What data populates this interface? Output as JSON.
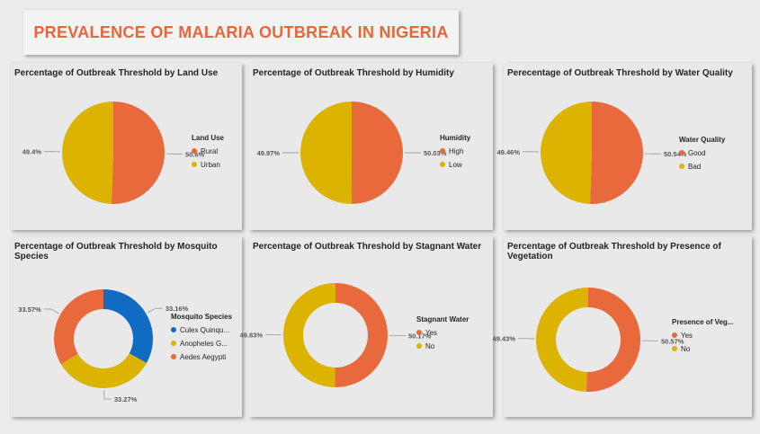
{
  "page": {
    "title": "PREVALENCE OF MALARIA OUTBREAK IN NIGERIA"
  },
  "colors": {
    "orange": "#e8693b",
    "yellow": "#dbb300",
    "blue": "#126bc2",
    "title": "#e8663a"
  },
  "chart_data": [
    {
      "id": "land-use",
      "type": "pie",
      "title": "Percentage of Outbreak Threshold by Land Use",
      "legend_title": "Land Use",
      "categories": [
        "Rural",
        "Urban"
      ],
      "values": [
        50.6,
        49.4
      ],
      "value_labels": [
        "50.6%",
        "49.4%"
      ],
      "colors": [
        "#e8693b",
        "#dbb300"
      ]
    },
    {
      "id": "humidity",
      "type": "pie",
      "title": "Percentage of Outbreak Threshold by Humidity",
      "legend_title": "Humidity",
      "categories": [
        "High",
        "Low"
      ],
      "values": [
        50.03,
        49.97
      ],
      "value_labels": [
        "50.03%",
        "49.97%"
      ],
      "colors": [
        "#e8693b",
        "#dbb300"
      ]
    },
    {
      "id": "water-quality",
      "type": "pie",
      "title": "Perecentage of Outbreak Threshold by Water Quality",
      "legend_title": "Water Quality",
      "categories": [
        "Good",
        "Bad"
      ],
      "values": [
        50.54,
        49.46
      ],
      "value_labels": [
        "50.54%",
        "49.46%"
      ],
      "colors": [
        "#e8693b",
        "#dbb300"
      ]
    },
    {
      "id": "mosquito-species",
      "type": "pie",
      "donut": true,
      "title": "Percentage of Outbreak Threshold by Mosquito Species",
      "legend_title": "Mosquito Species",
      "categories": [
        "Culex Quinqu...",
        "Anopheles G...",
        "Aedes Aegypti"
      ],
      "values": [
        33.16,
        33.27,
        33.57
      ],
      "value_labels": [
        "33.16%",
        "33.27%",
        "33.57%"
      ],
      "colors": [
        "#126bc2",
        "#dbb300",
        "#e8693b"
      ]
    },
    {
      "id": "stagnant-water",
      "type": "pie",
      "donut": true,
      "title": "Percentage of Outbreak Threshold by Stagnant Water",
      "legend_title": "Stagnant Water",
      "categories": [
        "Yes",
        "No"
      ],
      "values": [
        50.17,
        49.83
      ],
      "value_labels": [
        "50.17%",
        "49.83%"
      ],
      "colors": [
        "#e8693b",
        "#dbb300"
      ]
    },
    {
      "id": "vegetation",
      "type": "pie",
      "donut": true,
      "title": "Percentage of Outbreak Threshold by Presence of Vegetation",
      "legend_title": "Presence of Veg...",
      "categories": [
        "Yes",
        "No"
      ],
      "values": [
        50.57,
        49.43
      ],
      "value_labels": [
        "50.57%",
        "49.43%"
      ],
      "colors": [
        "#e8693b",
        "#dbb300"
      ]
    }
  ]
}
